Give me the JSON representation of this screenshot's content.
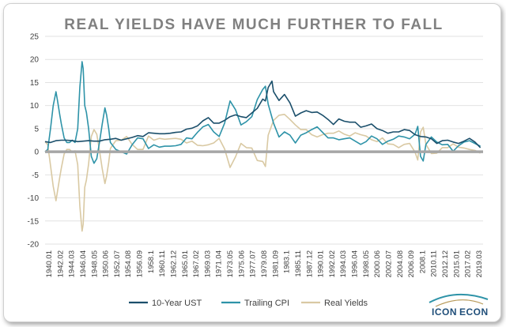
{
  "chart_data": {
    "type": "line",
    "title": "REAL YIELDS HAVE MUCH FURTHER TO FALL",
    "xlabel": "",
    "ylabel": "",
    "ylim": [
      -20,
      25
    ],
    "yticks": [
      25,
      20,
      15,
      10,
      5,
      0,
      -5,
      -10,
      -15,
      -20
    ],
    "xticks": [
      "1940.01",
      "1942.02",
      "1944.03",
      "1946.04",
      "1948.05",
      "1950.06",
      "1952.07",
      "1954.08",
      "1956.09",
      "1958.1",
      "1960.11",
      "1962.12",
      "1965.01",
      "1967.02",
      "1969.03",
      "1971.04",
      "1973.05",
      "1975.06",
      "1977.07",
      "1979.08",
      "1981.09",
      "1983.1",
      "1985.11",
      "1987.12",
      "1990.01",
      "1992.02",
      "1994.03",
      "1996.04",
      "1998.05",
      "2000.06",
      "2002.07",
      "2004.08",
      "2006.09",
      "2008.1",
      "2010.11",
      "2012.12",
      "2015.01",
      "2017.02",
      "2019.03"
    ],
    "xrange": [
      1940.0,
      2020.5
    ],
    "grid": true,
    "zero_line": true,
    "legend_position": "bottom",
    "series": [
      {
        "name": "10-Year UST",
        "color": "#1b4f6b",
        "x": [
          1940,
          1941,
          1942,
          1943,
          1944,
          1945,
          1946,
          1947,
          1948,
          1949,
          1950,
          1951,
          1952,
          1953,
          1954,
          1955,
          1956,
          1957,
          1958,
          1959,
          1960,
          1961,
          1962,
          1963,
          1964,
          1965,
          1966,
          1967,
          1968,
          1969,
          1970,
          1971,
          1972,
          1973,
          1974,
          1975,
          1976,
          1977,
          1978,
          1979,
          1980,
          1980.5,
          1981,
          1981.7,
          1982,
          1983,
          1984,
          1985,
          1986,
          1987,
          1988,
          1989,
          1990,
          1991,
          1992,
          1993,
          1994,
          1995,
          1996,
          1997,
          1998,
          1999,
          2000,
          2001,
          2002,
          2003,
          2004,
          2005,
          2006,
          2007,
          2008,
          2009,
          2010,
          2011,
          2012,
          2013,
          2014,
          2015,
          2016,
          2017,
          2018,
          2019,
          2020
        ],
        "y": [
          2.2,
          2.0,
          2.4,
          2.5,
          2.5,
          2.4,
          2.2,
          2.3,
          2.4,
          2.3,
          2.3,
          2.6,
          2.7,
          2.9,
          2.5,
          2.8,
          3.1,
          3.5,
          3.3,
          4.1,
          4.0,
          3.9,
          3.9,
          4.0,
          4.2,
          4.3,
          4.9,
          5.1,
          5.6,
          6.7,
          7.4,
          6.2,
          6.2,
          6.8,
          7.6,
          8.0,
          7.6,
          7.4,
          8.4,
          9.4,
          11.4,
          11.0,
          13.9,
          15.3,
          13.0,
          11.1,
          12.4,
          10.6,
          7.7,
          8.4,
          8.9,
          8.5,
          8.6,
          7.9,
          7.0,
          5.9,
          7.1,
          6.6,
          6.4,
          6.4,
          5.3,
          5.6,
          6.0,
          5.0,
          4.6,
          4.0,
          4.3,
          4.3,
          4.8,
          4.6,
          3.7,
          3.3,
          3.2,
          2.8,
          1.8,
          2.4,
          2.5,
          2.1,
          1.8,
          2.3,
          2.9,
          2.1,
          0.9
        ]
      },
      {
        "name": "Trailing CPI",
        "color": "#2e93a8",
        "x": [
          1940,
          1940.5,
          1941,
          1941.5,
          1942,
          1942.3,
          1942.7,
          1943,
          1943.5,
          1944,
          1944.5,
          1945,
          1945.5,
          1946,
          1946.4,
          1946.8,
          1947,
          1947.3,
          1947.6,
          1948,
          1948.5,
          1949,
          1949.5,
          1950,
          1950.5,
          1951,
          1951.3,
          1951.7,
          1952,
          1953,
          1954,
          1955,
          1956,
          1957,
          1958,
          1959,
          1960,
          1961,
          1962,
          1963,
          1964,
          1965,
          1966,
          1967,
          1968,
          1969,
          1970,
          1971,
          1972,
          1973,
          1974,
          1975,
          1976,
          1977,
          1978,
          1979,
          1980,
          1980.5,
          1981,
          1982,
          1983,
          1984,
          1985,
          1986,
          1987,
          1988,
          1989,
          1990,
          1991,
          1992,
          1993,
          1994,
          1995,
          1996,
          1997,
          1998,
          1999,
          2000,
          2001,
          2002,
          2003,
          2004,
          2005,
          2006,
          2007,
          2008,
          2008.5,
          2009,
          2009.5,
          2010,
          2011,
          2012,
          2013,
          2014,
          2015,
          2016,
          2017,
          2018,
          2019,
          2020
        ],
        "y": [
          0.0,
          0.5,
          5.0,
          10.0,
          13.0,
          11.0,
          8.0,
          6.0,
          3.0,
          2.0,
          2.0,
          2.5,
          2.0,
          5.0,
          14.0,
          19.5,
          18.0,
          10.0,
          8.5,
          5.0,
          -1.0,
          -2.5,
          -1.5,
          2.0,
          6.0,
          9.5,
          8.0,
          5.0,
          2.0,
          0.5,
          0.0,
          -0.5,
          1.5,
          3.0,
          2.8,
          0.7,
          1.5,
          1.0,
          1.2,
          1.2,
          1.3,
          1.6,
          3.0,
          2.8,
          4.2,
          5.4,
          5.9,
          4.3,
          3.3,
          6.2,
          11.0,
          9.1,
          5.8,
          6.5,
          7.6,
          11.3,
          13.5,
          14.2,
          10.3,
          6.2,
          3.2,
          4.3,
          3.6,
          1.9,
          3.6,
          4.1,
          4.8,
          5.4,
          4.2,
          3.0,
          3.0,
          2.6,
          2.8,
          3.0,
          2.3,
          1.6,
          2.2,
          3.4,
          2.8,
          1.6,
          2.3,
          2.7,
          3.4,
          3.2,
          2.8,
          3.8,
          5.5,
          -1.0,
          -2.0,
          1.6,
          3.2,
          2.1,
          1.5,
          1.6,
          0.1,
          1.3,
          2.1,
          2.4,
          1.8,
          1.2
        ]
      },
      {
        "name": "Real Yields",
        "color": "#d9c9a3",
        "x": [
          1940,
          1940.5,
          1941,
          1941.5,
          1942,
          1942.3,
          1942.7,
          1943,
          1943.5,
          1944,
          1944.5,
          1945,
          1945.5,
          1946,
          1946.4,
          1946.8,
          1947,
          1947.3,
          1947.6,
          1948,
          1948.5,
          1949,
          1949.5,
          1950,
          1950.5,
          1951,
          1951.3,
          1951.7,
          1952,
          1953,
          1954,
          1955,
          1956,
          1957,
          1958,
          1959,
          1960,
          1961,
          1962,
          1963,
          1964,
          1965,
          1966,
          1967,
          1968,
          1969,
          1970,
          1971,
          1972,
          1973,
          1974,
          1975,
          1976,
          1977,
          1978,
          1979,
          1980,
          1980.5,
          1981,
          1982,
          1983,
          1984,
          1985,
          1986,
          1987,
          1988,
          1989,
          1990,
          1991,
          1992,
          1993,
          1994,
          1995,
          1996,
          1997,
          1998,
          1999,
          2000,
          2001,
          2002,
          2003,
          2004,
          2005,
          2006,
          2007,
          2008,
          2008.5,
          2009,
          2009.5,
          2010,
          2011,
          2012,
          2013,
          2014,
          2015,
          2016,
          2017,
          2018,
          2019,
          2020
        ],
        "y": [
          2.2,
          1.5,
          -3.0,
          -7.5,
          -10.6,
          -8.5,
          -5.5,
          -3.5,
          -0.5,
          0.5,
          0.5,
          -0.1,
          0.2,
          -2.8,
          -11.8,
          -17.2,
          -15.7,
          -7.7,
          -6.1,
          -2.6,
          3.3,
          4.8,
          3.8,
          0.3,
          -3.7,
          -6.9,
          -5.3,
          -2.3,
          0.7,
          2.4,
          2.5,
          3.3,
          1.6,
          0.5,
          0.5,
          3.4,
          2.5,
          2.9,
          2.7,
          2.8,
          2.9,
          2.7,
          1.9,
          2.3,
          1.4,
          1.3,
          1.5,
          1.9,
          2.9,
          0.6,
          -3.4,
          -1.1,
          1.8,
          0.9,
          0.8,
          -1.9,
          -2.1,
          -3.2,
          3.6,
          6.8,
          7.9,
          8.1,
          7.0,
          5.8,
          4.8,
          4.8,
          3.7,
          3.2,
          3.7,
          4.0,
          4.0,
          4.5,
          3.8,
          3.4,
          4.1,
          3.7,
          3.4,
          2.6,
          2.2,
          3.0,
          1.7,
          1.6,
          0.9,
          1.6,
          1.8,
          -0.1,
          -1.8,
          4.3,
          5.3,
          1.6,
          -0.4,
          -0.3,
          0.9,
          0.9,
          1.7,
          1.0,
          0.8,
          0.5,
          0.3,
          -0.3
        ]
      }
    ]
  },
  "branding": {
    "logo_left": "ICON",
    "logo_right": "ECON",
    "colors": {
      "navy": "#1f4e79",
      "teal": "#2e93a8",
      "gold": "#b89a5a"
    }
  }
}
